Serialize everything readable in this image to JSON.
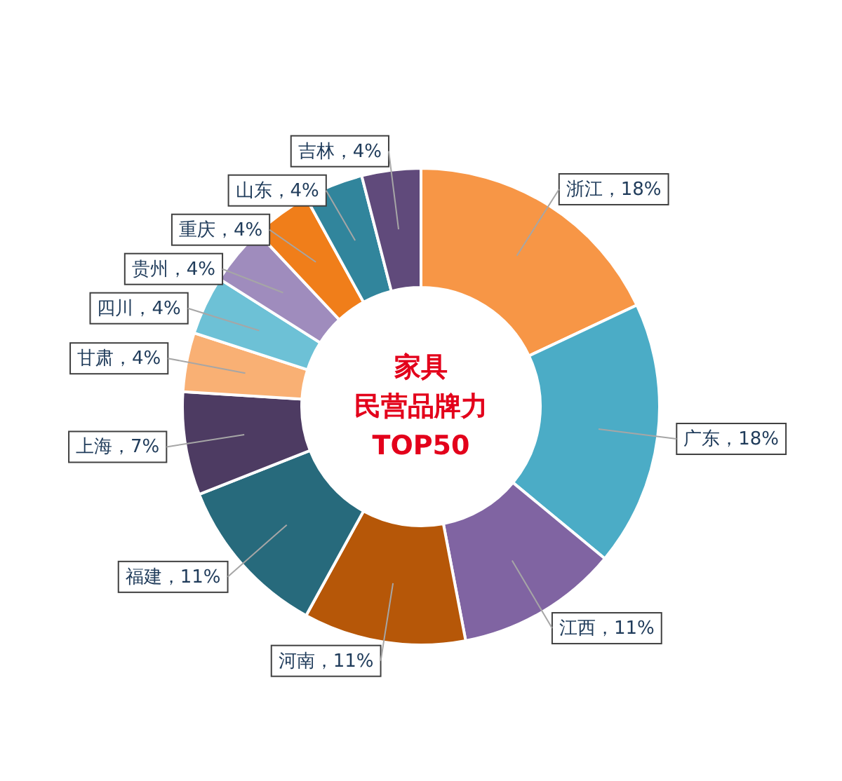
{
  "chart_data": {
    "type": "donut",
    "title": "家具",
    "subtitle": "民营品牌力TOP50",
    "categories": [
      "浙江",
      "广东",
      "江西",
      "河南",
      "福建",
      "上海",
      "甘肃",
      "四川",
      "贵州",
      "重庆",
      "山东",
      "吉林"
    ],
    "values": [
      18,
      18,
      11,
      11,
      11,
      7,
      4,
      4,
      4,
      4,
      4,
      4
    ],
    "value_labels": [
      "，18%",
      "，18%",
      "，11%",
      "，11%",
      "，11%",
      "，7%",
      "，4%",
      "，4%",
      "，4%",
      "，4%",
      "，4%",
      "，4%"
    ],
    "colors": [
      "#f79646",
      "#4bacc6",
      "#8064a2",
      "#b65708",
      "#276a7c",
      "#4d3b62",
      "#f9b074",
      "#6dc1d6",
      "#9f8cbd",
      "#f07e1a",
      "#31859c",
      "#604a7b"
    ],
    "legend": false
  }
}
